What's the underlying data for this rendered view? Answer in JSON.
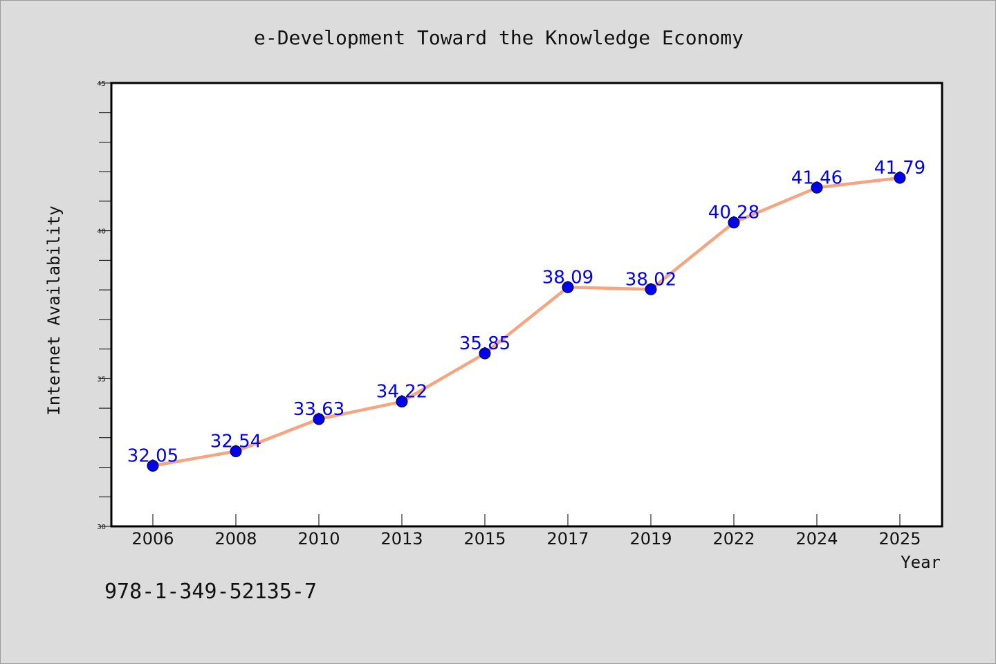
{
  "chart_data": {
    "type": "line",
    "title": "e-Development Toward the Knowledge Economy",
    "xlabel": "Year",
    "ylabel": "Internet Availability",
    "categories": [
      "2006",
      "2008",
      "2010",
      "2013",
      "2015",
      "2017",
      "2019",
      "2022",
      "2024",
      "2025"
    ],
    "series": [
      {
        "values": [
          32.05,
          32.54,
          33.63,
          34.22,
          35.85,
          38.09,
          38.02,
          40.28,
          41.46,
          41.79
        ],
        "labels": [
          "32.05",
          "32.54",
          "33.63",
          "34.22",
          "35.85",
          "38.09",
          "38.02",
          "40.28",
          "41.46",
          "41.79"
        ]
      }
    ],
    "ylim": [
      30,
      45
    ],
    "y_ticks": [
      "30",
      "35",
      "40",
      "45"
    ],
    "y_minor_step": 1,
    "grid": false,
    "line_color": "#f4a582",
    "marker_color": "#0000ee",
    "data_label_color": "#0000ee"
  },
  "annotation": "978-1-349-52135-7"
}
